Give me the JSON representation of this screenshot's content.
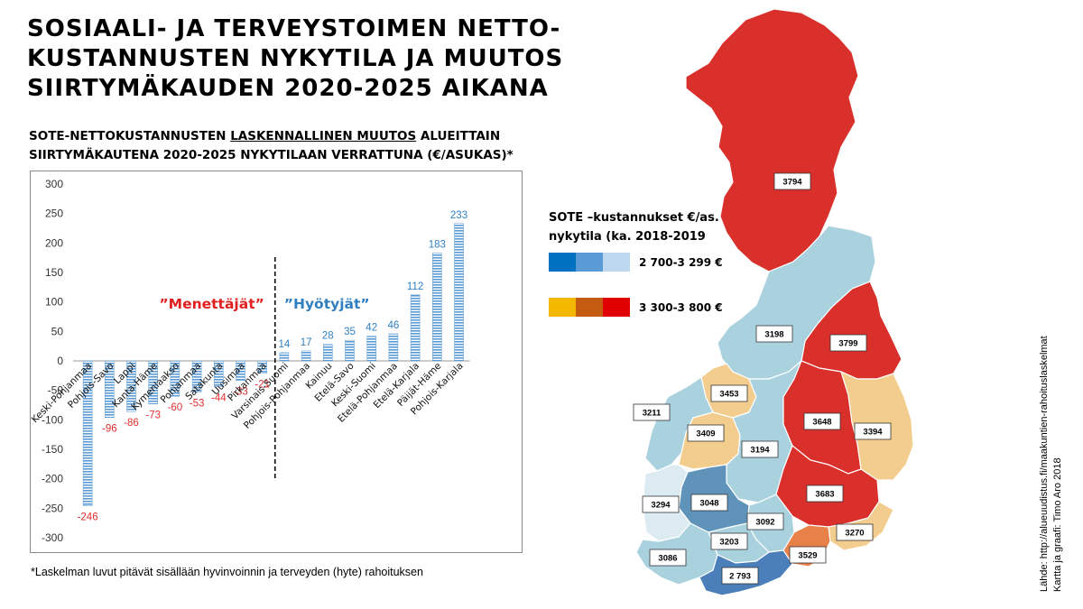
{
  "title_lines": [
    "SOSIAALI- JA TERVEYSTOIMEN NETTO-",
    "KUSTANNUSTEN NYKYTILA JA MUUTOS",
    "SIIRTYMÄKAUDEN 2020-2025 AIKANA"
  ],
  "subtitle": {
    "line1_pre": "SOTE-NETTOKUSTANNUSTEN ",
    "line1_underlined": "LASKENNALLINEN MUUTOS",
    "line1_post": " ALUEITTAIN",
    "line2": "SIIRTYMÄKAUTENA 2020-2025 NYKYTILAAN VERRATTUNA (€/ASUKAS)*"
  },
  "footnote": "*Laskelman luvut pitävät sisällään hyvinvoinnin ja terveyden (hyte) rahoituksen",
  "chart_data": {
    "type": "bar",
    "categories": [
      "Keski-Pohjanmaa",
      "Pohjois-Savo",
      "Lappi",
      "Kanta-Häme",
      "Kymenlaakso",
      "Pohjanmaa",
      "Satakunta",
      "Uusimaa",
      "Pirkanmaa",
      "Varsinais-Suomi",
      "Pohjois-Pohjanmaa",
      "Kainuu",
      "Etelä-Savo",
      "Keski-Suomi",
      "Etelä-Pohjanmaa",
      "Etelä-Karjala",
      "Päijät-Häme",
      "Pohjois-Karjala"
    ],
    "values": [
      -246,
      -96,
      -86,
      -73,
      -60,
      -53,
      -44,
      -33,
      -21,
      14,
      17,
      28,
      35,
      42,
      46,
      112,
      183,
      233
    ],
    "ylim": [
      -300,
      300
    ],
    "yticks": [
      -300,
      -250,
      -200,
      -150,
      -100,
      -50,
      0,
      50,
      100,
      150,
      200,
      250,
      300
    ],
    "negative_label_color": "#e03030",
    "positive_label_color": "#2f7fc1",
    "bar_color": "#5b9bd5",
    "group_labels": {
      "losers": "”Menettäjät”",
      "winners": "”Hyötyjät”"
    },
    "losers_color": "#e02020",
    "winners_color": "#2f7fc1"
  },
  "legend": {
    "title_line1": "SOTE –kustannukset €/as.",
    "title_line2": "nykytila (ka. 2018-2019",
    "low_label": "2 700-3 299 €",
    "high_label": "3 300-3 800 €",
    "low_colors": [
      "#0070c0",
      "#5b9bd5",
      "#bdd7ee"
    ],
    "high_colors": [
      "#f5b800",
      "#c55a11",
      "#e00000"
    ]
  },
  "map": {
    "regions": [
      {
        "name": "Lappi",
        "value": "3794",
        "color": "#d9302c"
      },
      {
        "name": "Pohjois-Pohjanmaa",
        "value": "3198",
        "color": "#a9d1de"
      },
      {
        "name": "Kainuu",
        "value": "3799",
        "color": "#d9302c"
      },
      {
        "name": "Keski-Pohjanmaa",
        "value": "3453",
        "color": "#f3cd8d"
      },
      {
        "name": "Pohjanmaa",
        "value": "3211",
        "color": "#a9d1de"
      },
      {
        "name": "Etelä-Pohjanmaa",
        "value": "3409",
        "color": "#f3cd8d"
      },
      {
        "name": "Keski-Suomi",
        "value": "3194",
        "color": "#a9d1de"
      },
      {
        "name": "Pohjois-Savo",
        "value": "3648",
        "color": "#d9302c"
      },
      {
        "name": "Pohjois-Karjala",
        "value": "3394",
        "color": "#f3cd8d"
      },
      {
        "name": "Etelä-Savo",
        "value": "3683",
        "color": "#d9302c"
      },
      {
        "name": "Satakunta",
        "value": "3294",
        "color": "#dceaf2"
      },
      {
        "name": "Pirkanmaa",
        "value": "3048",
        "color": "#5f93ba"
      },
      {
        "name": "Päijät-Häme",
        "value": "3092",
        "color": "#a9d1de"
      },
      {
        "name": "Etelä-Karjala",
        "value": "3270",
        "color": "#f3cd8d"
      },
      {
        "name": "Kanta-Häme",
        "value": "3203",
        "color": "#a9d1de"
      },
      {
        "name": "Kymenlaakso",
        "value": "3529",
        "color": "#e8804a"
      },
      {
        "name": "Varsinais-Suomi",
        "value": "3086",
        "color": "#a9d1de"
      },
      {
        "name": "Uusimaa",
        "value": "2 793",
        "color": "#4a7fba"
      }
    ]
  },
  "source_line1": "Lähde: http://alueuudistus.fi/maakuntien-rahoituslaskelmat",
  "source_line2": "Kartta ja graafi: Timo Aro 2018"
}
